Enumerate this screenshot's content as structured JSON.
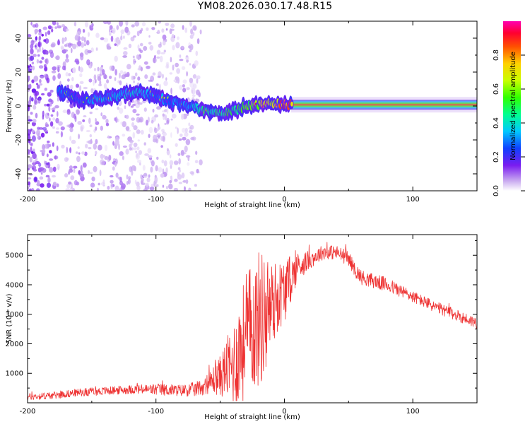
{
  "title": "YM08.2026.030.17.48.R15",
  "colors": {
    "spectrogram_low": "#b89ae8",
    "snr_line": "#ee3333"
  },
  "chart_data": [
    {
      "type": "heatmap",
      "name": "spectrogram",
      "xlabel": "Height of straight line (km)",
      "ylabel": "Frequency (Hz)",
      "xlim": [
        -200,
        150
      ],
      "ylim": [
        -50,
        50
      ],
      "xticks": [
        -200,
        -100,
        0,
        100
      ],
      "xtick_labels": [
        "-200",
        "-100",
        "0",
        "100"
      ],
      "yticks": [
        -40,
        -20,
        0,
        20,
        40
      ],
      "ytick_labels": [
        "-40",
        "-20",
        "0",
        "20",
        "40"
      ],
      "noise_region_km": [
        -200,
        -65
      ],
      "ridge": {
        "x": [
          -175,
          -160,
          -145,
          -130,
          -115,
          -100,
          -90,
          -80,
          -70,
          -60,
          -50,
          -45,
          -40,
          -30,
          -20,
          -10,
          0,
          20,
          50,
          100,
          150
        ],
        "freq": [
          8,
          4,
          4,
          6,
          8,
          6,
          3,
          1,
          -1,
          -3,
          -4,
          -4,
          -3,
          0,
          1,
          2,
          1,
          0.5,
          0.5,
          0.5,
          0.5
        ],
        "amplitude": [
          0.3,
          0.25,
          0.35,
          0.35,
          0.35,
          0.3,
          0.3,
          0.3,
          0.35,
          0.45,
          0.45,
          0.5,
          0.5,
          0.55,
          0.6,
          0.7,
          0.8,
          0.9,
          0.92,
          0.92,
          0.9
        ]
      },
      "colorbar": {
        "label": "Normalized spectral amplitude",
        "range": [
          0,
          1
        ],
        "ticks": [
          0.0,
          0.2,
          0.4,
          0.6,
          0.8
        ],
        "tick_labels": [
          "0.0",
          "0.2",
          "0.4",
          "0.6",
          "0.8"
        ]
      }
    },
    {
      "type": "line",
      "name": "snr",
      "xlabel": "Height of straight line (km)",
      "ylabel": "SNR (10 * v/v)",
      "xlim": [
        -200,
        150
      ],
      "ylim": [
        0,
        5700
      ],
      "xticks": [
        -200,
        -100,
        0,
        100
      ],
      "xtick_labels": [
        "-200",
        "-100",
        "0",
        "100"
      ],
      "yticks": [
        1000,
        2000,
        3000,
        4000,
        5000
      ],
      "ytick_labels": [
        "1000",
        "2000",
        "3000",
        "4000",
        "5000"
      ],
      "series": [
        {
          "name": "SNR",
          "x": [
            -200,
            -180,
            -160,
            -140,
            -120,
            -100,
            -80,
            -70,
            -60,
            -55,
            -50,
            -45,
            -40,
            -35,
            -30,
            -25,
            -20,
            -15,
            -10,
            -5,
            0,
            5,
            10,
            20,
            30,
            40,
            50,
            55,
            60,
            80,
            100,
            120,
            150
          ],
          "base": [
            200,
            250,
            350,
            400,
            450,
            450,
            420,
            450,
            600,
            800,
            900,
            1200,
            1200,
            1800,
            2200,
            2600,
            2800,
            3000,
            3300,
            3600,
            3800,
            4200,
            4600,
            4850,
            5100,
            5100,
            4900,
            4500,
            4250,
            4000,
            3600,
            3200,
            2700
          ],
          "spread": [
            120,
            120,
            130,
            140,
            150,
            200,
            200,
            250,
            300,
            500,
            700,
            1000,
            1500,
            1800,
            2200,
            2200,
            2400,
            2200,
            1500,
            1200,
            1100,
            800,
            500,
            300,
            250,
            250,
            250,
            250,
            250,
            250,
            200,
            200,
            200
          ]
        }
      ]
    }
  ]
}
